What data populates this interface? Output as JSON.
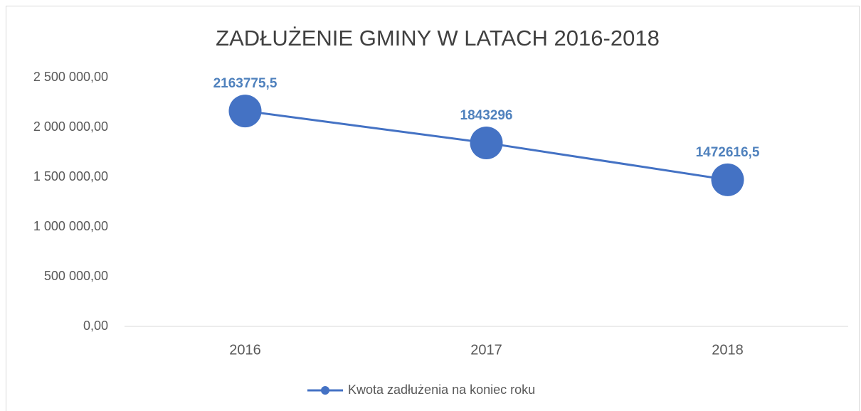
{
  "chart_data": {
    "type": "line",
    "title": "ZADŁUŻENIE GMINY W LATACH 2016-2018",
    "categories": [
      "2016",
      "2017",
      "2018"
    ],
    "series": [
      {
        "name": "Kwota zadłużenia na koniec roku",
        "color": "#4472c4",
        "values": [
          2163775.5,
          1843296,
          1472616.5
        ],
        "value_labels": [
          "2163775,5",
          "1843296",
          "1472616,5"
        ]
      }
    ],
    "ylim": [
      0,
      2500000
    ],
    "yticks": [
      {
        "value": 0,
        "label": "0,00"
      },
      {
        "value": 500000,
        "label": "500 000,00"
      },
      {
        "value": 1000000,
        "label": "1 000 000,00"
      },
      {
        "value": 1500000,
        "label": "1 500 000,00"
      },
      {
        "value": 2000000,
        "label": "2 000 000,00"
      },
      {
        "value": 2500000,
        "label": "2 500 000,00"
      }
    ],
    "grid": false,
    "legend": "bottom"
  }
}
